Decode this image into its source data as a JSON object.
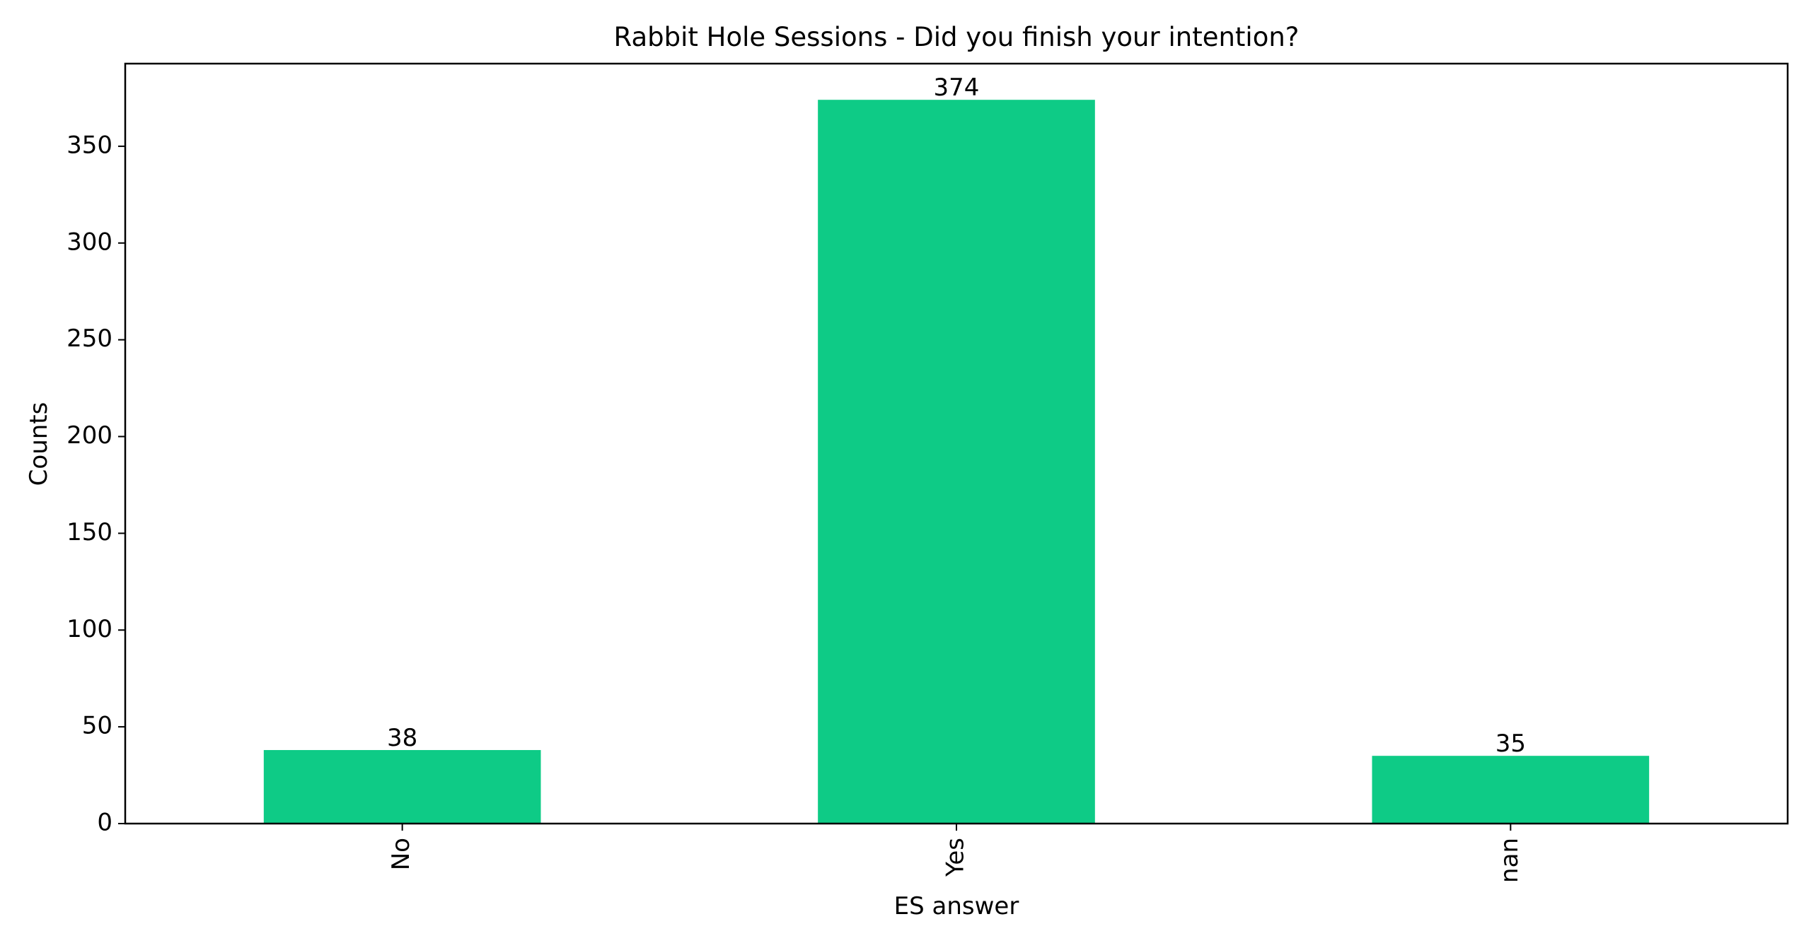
{
  "chart_data": {
    "type": "bar",
    "title": "Rabbit Hole Sessions - Did you finish your intention?",
    "xlabel": "ES answer",
    "ylabel": "Counts",
    "categories": [
      "No",
      "Yes",
      "nan"
    ],
    "values": [
      38,
      374,
      35
    ],
    "data_labels": [
      "38",
      "374",
      "35"
    ],
    "ylim": [
      0,
      392.7
    ],
    "yticks": [
      0,
      50,
      100,
      150,
      200,
      250,
      300,
      350
    ],
    "ytick_labels": [
      "0",
      "50",
      "100",
      "150",
      "200",
      "250",
      "300",
      "350"
    ],
    "bar_color": "#0ecb86",
    "x_tick_rotation": "vertical",
    "grid": false,
    "legend": "none"
  }
}
